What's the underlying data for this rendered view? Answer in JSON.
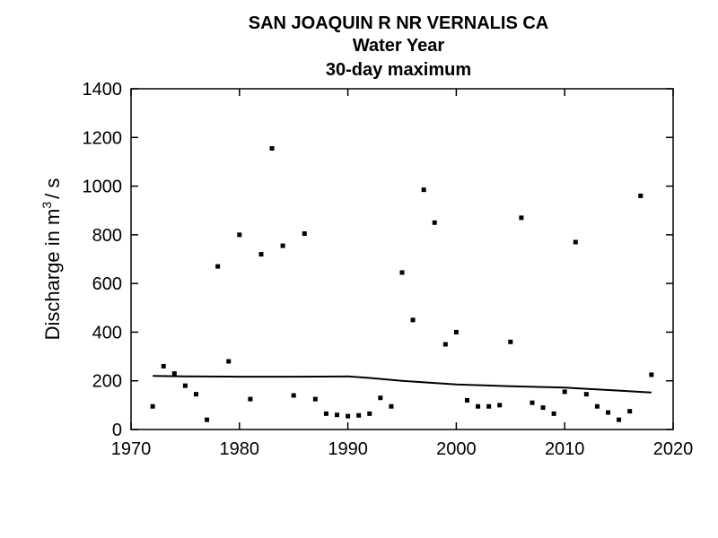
{
  "chart_data": {
    "type": "scatter",
    "title_lines": [
      "SAN JOAQUIN R NR VERNALIS CA",
      "Water Year",
      "30-day maximum"
    ],
    "ylabel_prefix": "Discharge in m",
    "ylabel_sup": "3",
    "ylabel_suffix": "/ s",
    "xlim": [
      1970,
      2020
    ],
    "ylim": [
      0,
      1400
    ],
    "xticks": [
      1970,
      1980,
      1990,
      2000,
      2010,
      2020
    ],
    "yticks": [
      0,
      200,
      400,
      600,
      800,
      1000,
      1200,
      1400
    ],
    "grid": false,
    "legend": "none",
    "series": [
      {
        "kind": "points",
        "x": [
          1972,
          1973,
          1974,
          1975,
          1976,
          1977,
          1978,
          1979,
          1980,
          1981,
          1982,
          1983,
          1984,
          1985,
          1986,
          1987,
          1988,
          1989,
          1990,
          1991,
          1992,
          1993,
          1994,
          1995,
          1996,
          1997,
          1998,
          1999,
          2000,
          2001,
          2002,
          2003,
          2004,
          2005,
          2006,
          2007,
          2008,
          2009,
          2010,
          2011,
          2012,
          2013,
          2014,
          2015,
          2016,
          2017,
          2018
        ],
        "y": [
          95,
          260,
          230,
          180,
          145,
          40,
          670,
          280,
          800,
          125,
          720,
          1155,
          755,
          140,
          805,
          125,
          65,
          60,
          55,
          58,
          65,
          130,
          95,
          645,
          450,
          985,
          850,
          350,
          400,
          120,
          95,
          95,
          100,
          360,
          870,
          110,
          90,
          65,
          155,
          770,
          145,
          95,
          70,
          40,
          75,
          960,
          225
        ]
      },
      {
        "kind": "line",
        "x": [
          1972,
          1975,
          1980,
          1985,
          1990,
          1992,
          1995,
          2000,
          2005,
          2010,
          2015,
          2018
        ],
        "y": [
          220,
          218,
          217,
          217,
          218,
          212,
          200,
          185,
          178,
          172,
          160,
          152
        ]
      }
    ]
  }
}
